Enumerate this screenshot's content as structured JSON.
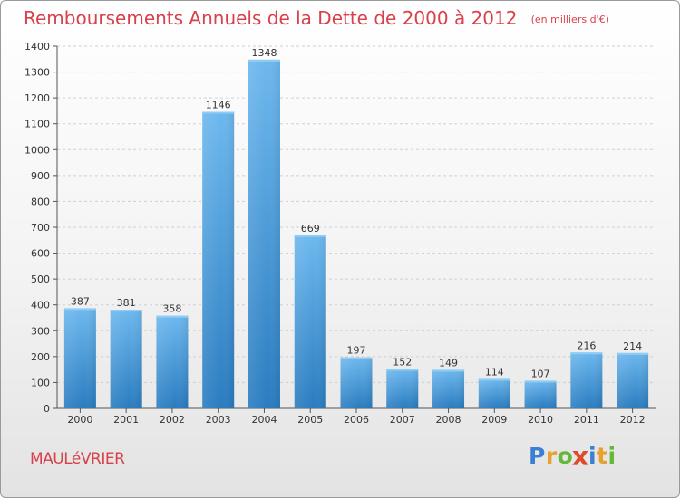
{
  "title": "Remboursements Annuels de la Dette de 2000 à 2012",
  "subtitle": "(en milliers d'€)",
  "commune": "MAULéVRIER",
  "logo": {
    "letters": [
      "P",
      "r",
      "o",
      "x",
      "i",
      "t",
      "i"
    ],
    "colors": [
      "#3a7fd4",
      "#e8a030",
      "#66b83a",
      "#e04a2a",
      "#3a7fd4",
      "#e8a030",
      "#66b83a"
    ]
  },
  "colors": {
    "bar_top": "#6db8ee",
    "bar_bottom": "#2a7cc0",
    "title": "#d9404a"
  },
  "chart_data": {
    "type": "bar",
    "title": "Remboursements Annuels de la Dette de 2000 à 2012",
    "categories": [
      "2000",
      "2001",
      "2002",
      "2003",
      "2004",
      "2005",
      "2006",
      "2007",
      "2008",
      "2009",
      "2010",
      "2011",
      "2012"
    ],
    "values": [
      387,
      381,
      358,
      1146,
      1348,
      669,
      197,
      152,
      149,
      114,
      107,
      216,
      214
    ],
    "ylim": [
      0,
      1400
    ],
    "yticks": [
      0,
      100,
      200,
      300,
      400,
      500,
      600,
      700,
      800,
      900,
      1000,
      1100,
      1200,
      1300,
      1400
    ],
    "grid": true
  }
}
